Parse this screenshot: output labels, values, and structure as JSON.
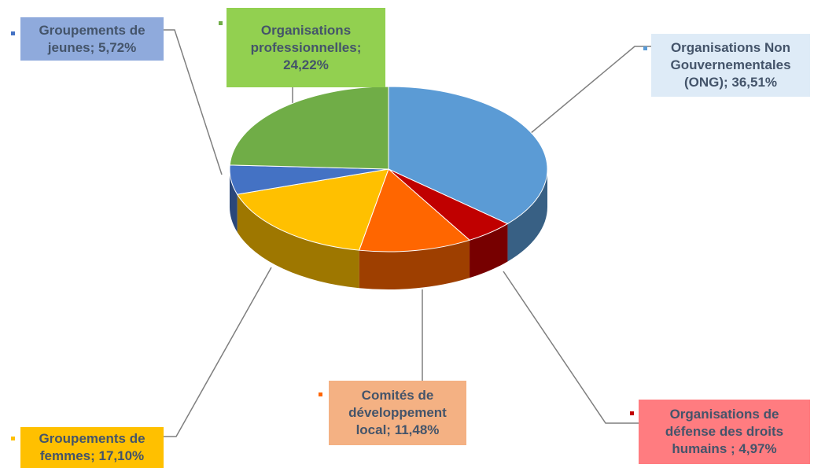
{
  "chart_data": {
    "type": "pie3d",
    "categories": [
      "Organisations Non Gouvernementales (ONG);",
      "Organisations de défense des droits humains ;",
      "Comités de développement local;",
      "Groupements de femmes;",
      "Groupements de jeunes;",
      "Organisations professionnelles;"
    ],
    "values": [
      36.51,
      4.97,
      11.48,
      17.1,
      5.72,
      24.22
    ],
    "value_labels": [
      "36,51%",
      "4,97%",
      "11,48%",
      "17,10%",
      "5,72%",
      "24,22%"
    ],
    "colors": [
      "#5b9bd5",
      "#c00000",
      "#ff6600",
      "#ffc000",
      "#4472c4",
      "#70ad47"
    ],
    "label_colors": [
      "#deebf7",
      "#ff7c80",
      "#f4b183",
      "#ffc000",
      "#8faadc",
      "#92d050"
    ]
  }
}
